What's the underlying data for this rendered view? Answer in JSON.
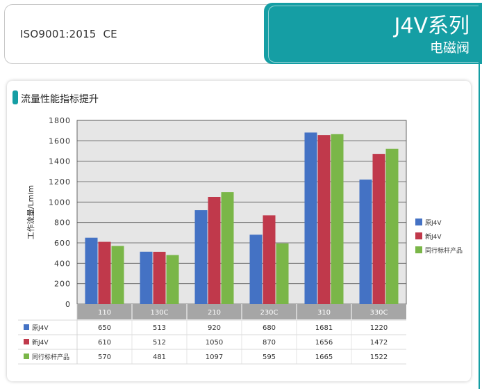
{
  "header": {
    "certification": "ISO9001:2015  CE",
    "series_title": "J4V系列",
    "subtitle": "电磁阀"
  },
  "section_title": "流量性能指标提升",
  "chart_data": {
    "type": "bar",
    "ylabel": "工作流量/Lmim",
    "ylim": [
      0,
      1800
    ],
    "yticks": [
      0,
      200,
      400,
      600,
      800,
      1000,
      1200,
      1400,
      1600,
      1800
    ],
    "grid": true,
    "legend_position": "right",
    "categories": [
      "110",
      "130C",
      "210",
      "230C",
      "310",
      "330C"
    ],
    "series": [
      {
        "name": "原J4V",
        "color": "#4472c4",
        "values": [
          650,
          513,
          920,
          680,
          1681,
          1220
        ]
      },
      {
        "name": "新J4V",
        "color": "#c0394b",
        "values": [
          610,
          512,
          1050,
          870,
          1656,
          1472
        ]
      },
      {
        "name": "同行标杆产品",
        "color": "#7ab648",
        "values": [
          570,
          481,
          1097,
          595,
          1665,
          1522
        ]
      }
    ]
  },
  "colors": {
    "accent": "#159ea4",
    "plot_background": "#e6e6e6",
    "category_band": "#a6a6a6"
  }
}
